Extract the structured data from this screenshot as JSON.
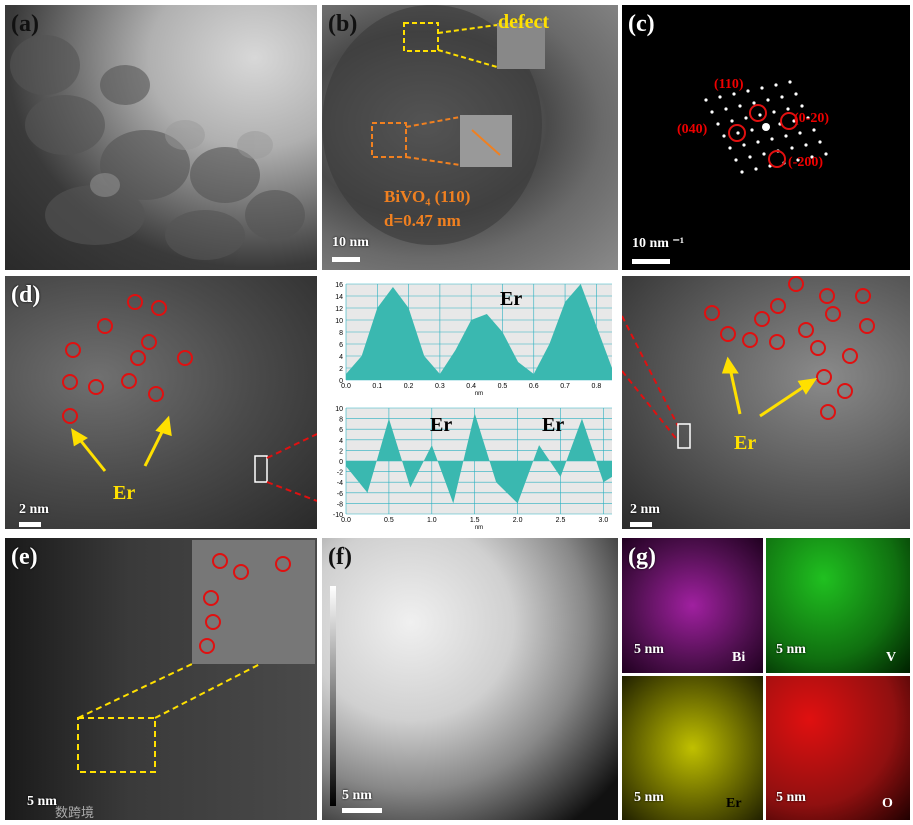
{
  "panels": {
    "a": {
      "label": "(a)"
    },
    "b": {
      "label": "(b)",
      "defect": "defect",
      "phase": "BiVO₄ (110)",
      "dspacing": "d=0.47 nm",
      "scale": "10 nm"
    },
    "c": {
      "label": "(c)",
      "spots": [
        "(110)",
        "(040)",
        "(0-20)",
        "(-200)"
      ],
      "scale": "10 nm ⁻¹"
    },
    "d": {
      "label": "(d)",
      "er": "Er",
      "scale": "2 nm"
    },
    "d_right": {
      "er": "Er",
      "scale": "2 nm"
    },
    "e": {
      "label": "(e)",
      "scale": "5 nm"
    },
    "f": {
      "label": "(f)",
      "scale": "5 nm"
    },
    "g": {
      "label": "(g)",
      "maps": [
        {
          "element": "Bi",
          "scale": "5 nm",
          "color": "#c000c0"
        },
        {
          "element": "V",
          "scale": "5 nm",
          "color": "#00c000"
        },
        {
          "element": "Er",
          "scale": "5 nm",
          "color": "#e0e000"
        },
        {
          "element": "O",
          "scale": "5 nm",
          "color": "#e00000"
        }
      ]
    }
  },
  "profile_top": {
    "annotation": "Er",
    "x_unit": "nm",
    "x_ticks": [
      "0.0",
      "0.1",
      "0.2",
      "0.3",
      "0.4",
      "0.5",
      "0.6",
      "0.7",
      "0.8"
    ],
    "y_ticks": [
      "0",
      "2",
      "4",
      "6",
      "8",
      "10",
      "12",
      "14",
      "16"
    ]
  },
  "profile_bottom": {
    "annotations": [
      "Er",
      "Er"
    ],
    "x_unit": "nm",
    "x_ticks": [
      "0.0",
      "0.5",
      "1.0",
      "1.5",
      "2.0",
      "2.5",
      "3.0"
    ],
    "y_ticks": [
      "-10",
      "-8",
      "-6",
      "-4",
      "-2",
      "0",
      "2",
      "4",
      "6",
      "8",
      "10"
    ]
  },
  "watermark": "数跨境",
  "chart_data": [
    {
      "type": "area",
      "x": [
        0.0,
        0.05,
        0.1,
        0.15,
        0.2,
        0.25,
        0.3,
        0.35,
        0.4,
        0.45,
        0.5,
        0.55,
        0.6,
        0.65,
        0.7,
        0.75,
        0.8,
        0.85
      ],
      "y": [
        1,
        4,
        12,
        15.5,
        12,
        4,
        1,
        5,
        10,
        11,
        8,
        3,
        1,
        6,
        13,
        16,
        9,
        2
      ],
      "ylim": [
        0,
        16
      ],
      "xlabel": "nm",
      "annotation": "Er"
    },
    {
      "type": "area",
      "x": [
        0.0,
        0.25,
        0.5,
        0.75,
        1.0,
        1.25,
        1.5,
        1.75,
        2.0,
        2.25,
        2.5,
        2.75,
        3.0,
        3.1
      ],
      "y": [
        -1,
        -6,
        8,
        -5,
        3,
        -8,
        9,
        -4,
        -8,
        3,
        -3,
        8,
        -4,
        -3
      ],
      "ylim": [
        -10,
        10
      ],
      "xlabel": "nm",
      "annotations": [
        "Er",
        "Er"
      ]
    }
  ]
}
